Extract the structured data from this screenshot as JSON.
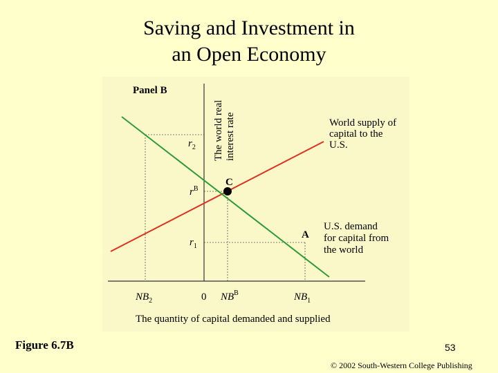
{
  "title": {
    "line1": "Saving and Investment in",
    "line2": "an Open Economy"
  },
  "panel_label": "Panel B",
  "y_axis_label": {
    "line1": "The world real",
    "line2": "interest rate"
  },
  "x_axis_label": "The quantity of capital demanded and supplied",
  "y_ticks": [
    {
      "base": "r",
      "sub": "2",
      "sup": ""
    },
    {
      "base": "r",
      "sub": "",
      "sup": "B"
    },
    {
      "base": "r",
      "sub": "1",
      "sup": ""
    }
  ],
  "x_ticks": [
    {
      "base": "NB",
      "sub": "2",
      "sup": ""
    },
    {
      "base": "0",
      "sub": "",
      "sup": ""
    },
    {
      "base": "NB",
      "sub": "",
      "sup": "B"
    },
    {
      "base": "NB",
      "sub": "1",
      "sup": ""
    }
  ],
  "points": {
    "C": "C",
    "A": "A"
  },
  "supply_label": {
    "line1": "World supply of",
    "line2": "capital to the",
    "line3": "U.S."
  },
  "demand_label": {
    "line1": "U.S. demand",
    "line2": "for capital from",
    "line3": "the world"
  },
  "colors": {
    "background": "#FFFFCC",
    "panel": "#FAF8C8",
    "supply_line": "#E03020",
    "demand_line": "#2E9A3A"
  },
  "figure_label": "Figure 6.7B",
  "page_number": "53",
  "copyright": "© 2002 South-Western College Publishing"
}
